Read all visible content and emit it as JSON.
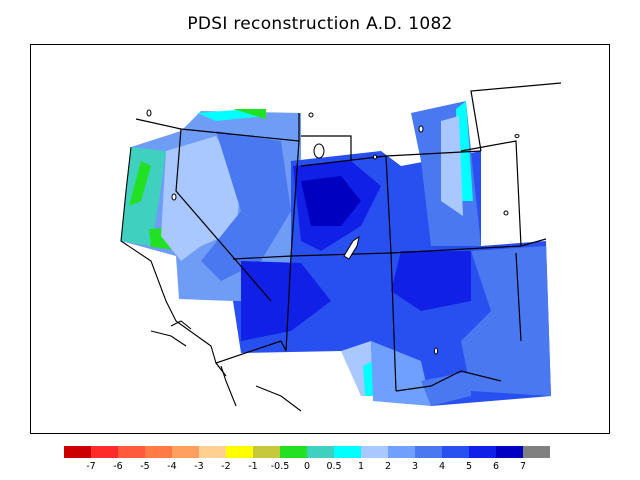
{
  "title": "PDSI reconstruction A.D. 1082",
  "legend": {
    "colors": [
      "#cc0000",
      "#ff2a2a",
      "#ff5a3c",
      "#ff7a45",
      "#ffa060",
      "#ffd090",
      "#ffff00",
      "#c8c83c",
      "#22e022",
      "#40d0c0",
      "#00ffff",
      "#a8c8ff",
      "#70a0ff",
      "#4a78f0",
      "#2850f0",
      "#1020e6",
      "#0000c0",
      "#808080"
    ],
    "ticks": [
      "-7",
      "-6",
      "-5",
      "-4",
      "-3",
      "-2",
      "-1",
      "-0.5",
      "0",
      "0.5",
      "1",
      "2",
      "3",
      "4",
      "5",
      "6",
      "7"
    ]
  }
}
